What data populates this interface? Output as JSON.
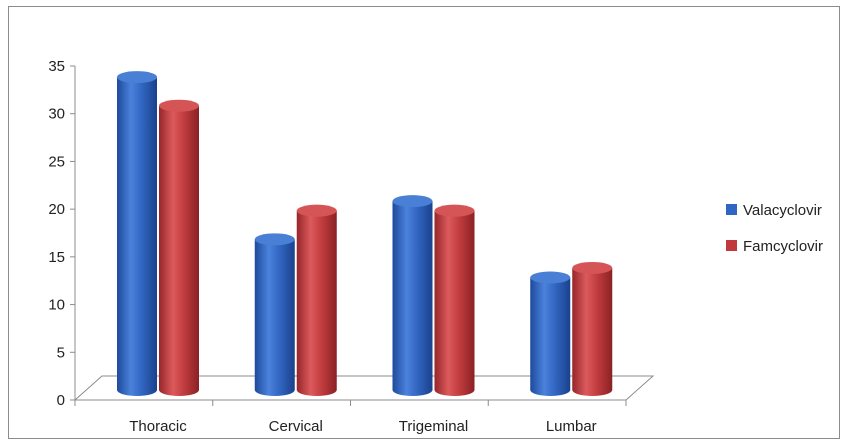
{
  "chart_data": {
    "type": "bar",
    "categories": [
      "Thoracic",
      "Cervical",
      "Trigeminal",
      "Lumbar"
    ],
    "series": [
      {
        "name": "Valacyclovir",
        "values": [
          33,
          16,
          20,
          12
        ],
        "color": "#2f65c3"
      },
      {
        "name": "Famcyclovir",
        "values": [
          30,
          19,
          19,
          13
        ],
        "color": "#c0393b"
      }
    ],
    "yticks": [
      0,
      5,
      10,
      15,
      20,
      25,
      30,
      35
    ],
    "ylim": [
      0,
      35
    ],
    "legend_position": "right",
    "grid": false,
    "style": "3d-cylinder"
  }
}
